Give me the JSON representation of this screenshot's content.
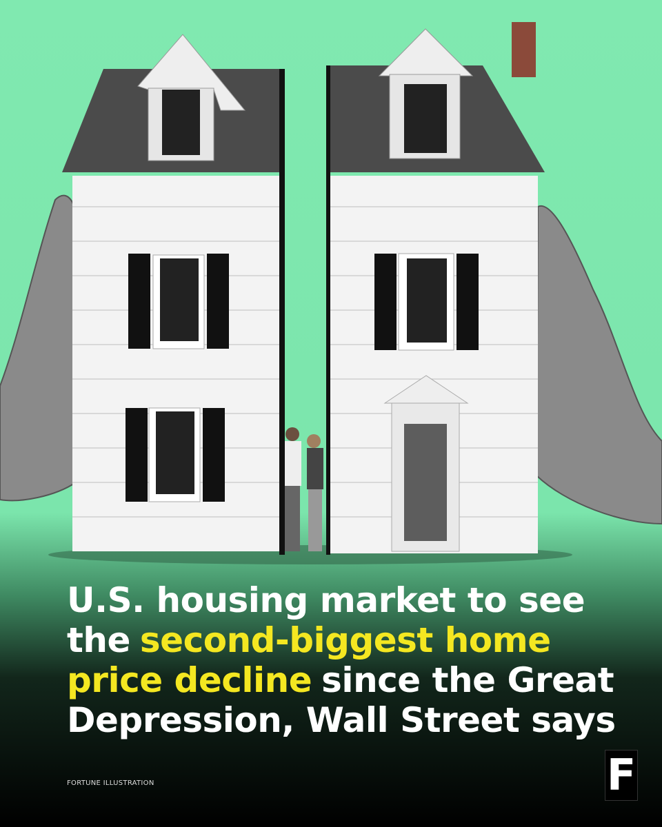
{
  "headline": {
    "lines": [
      [
        {
          "text": "U.S. housing market to see",
          "highlight": false
        }
      ],
      [
        {
          "text": "the",
          "highlight": false
        },
        {
          "text": "second-biggest home",
          "highlight": true
        }
      ],
      [
        {
          "text": "price decline",
          "highlight": true
        },
        {
          "text": "since the Great",
          "highlight": false
        }
      ],
      [
        {
          "text": "Depression, Wall Street says",
          "highlight": false
        }
      ]
    ]
  },
  "credit": "FORTUNE ILLUSTRATION",
  "logo": "F"
}
